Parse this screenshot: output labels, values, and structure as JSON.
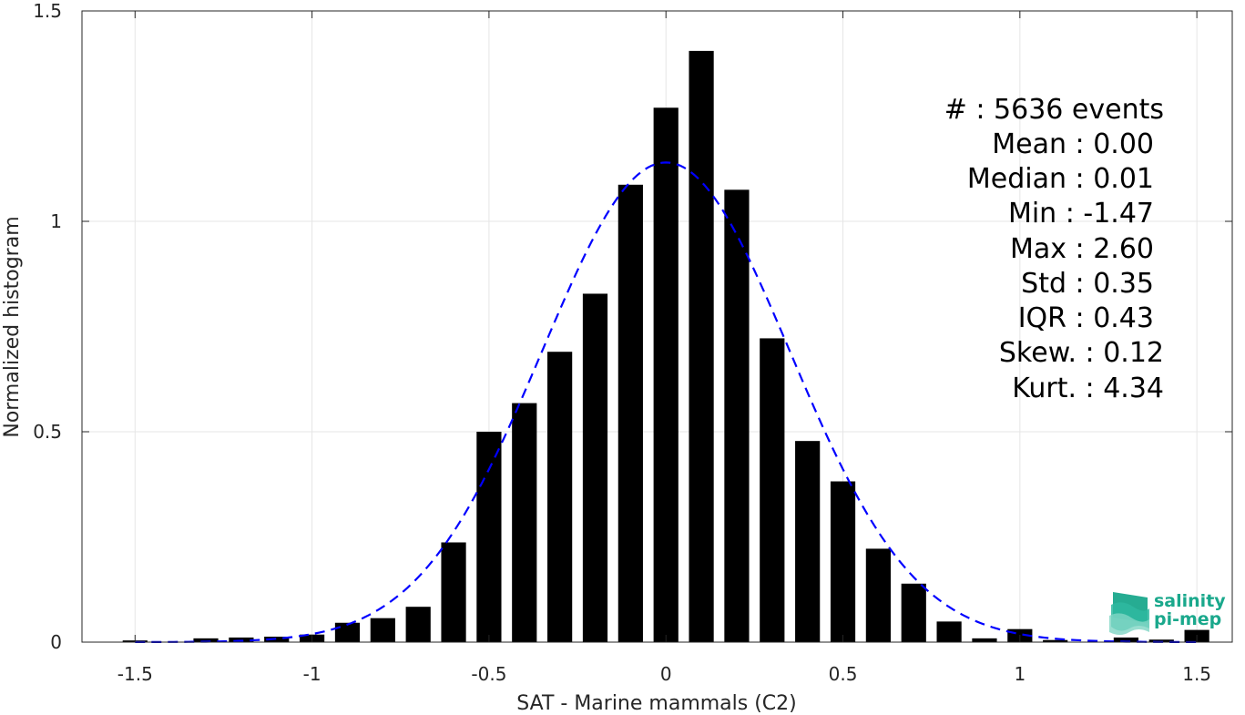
{
  "chart_data": {
    "type": "bar",
    "xlabel": "SAT - Marine mammals (C2)",
    "ylabel": "Normalized histogram",
    "xlim": [
      -1.65,
      1.6
    ],
    "ylim": [
      0,
      1.5
    ],
    "grid": true,
    "x_ticks": [
      -1.5,
      -1,
      -0.5,
      0,
      0.5,
      1,
      1.5
    ],
    "x_tick_labels": [
      "-1.5",
      "-1",
      "-0.5",
      "0",
      "0.5",
      "1",
      "1.5"
    ],
    "y_ticks": [
      0,
      0.5,
      1,
      1.5
    ],
    "y_tick_labels": [
      "0",
      "0.5",
      "1",
      "1.5"
    ],
    "bar_width": 0.07,
    "bar_color": "#000000",
    "bars": {
      "x": [
        -1.5,
        -1.3,
        -1.2,
        -1.1,
        -1.0,
        -0.9,
        -0.8,
        -0.7,
        -0.6,
        -0.5,
        -0.4,
        -0.3,
        -0.2,
        -0.1,
        0.0,
        0.1,
        0.2,
        0.3,
        0.4,
        0.5,
        0.6,
        0.7,
        0.8,
        0.9,
        1.0,
        1.1,
        1.3,
        1.4,
        1.5
      ],
      "values": [
        0.004,
        0.009,
        0.011,
        0.013,
        0.018,
        0.046,
        0.057,
        0.084,
        0.237,
        0.5,
        0.568,
        0.69,
        0.828,
        1.087,
        1.27,
        1.405,
        1.075,
        0.722,
        0.478,
        0.382,
        0.222,
        0.139,
        0.049,
        0.009,
        0.031,
        0.005,
        0.011,
        0.006,
        0.029
      ]
    },
    "fit_curve": {
      "type": "gaussian",
      "mean": 0.0,
      "std": 0.35,
      "x_range": [
        -1.5,
        1.5
      ],
      "color": "#0000ff",
      "style": "dashed"
    },
    "stats_lines": [
      "#  : 5636 events",
      "Mean : 0.00",
      "Median : 0.01",
      "Min : -1.47",
      "Max : 2.60",
      "Std : 0.35",
      "IQR : 0.43",
      "Skew. : 0.12",
      "Kurt. : 4.34"
    ]
  },
  "logo": {
    "line1": "salinity",
    "line2": "pi-mep",
    "color": "#1aa88c"
  }
}
